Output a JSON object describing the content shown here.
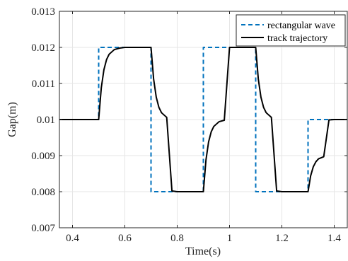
{
  "chart_data": {
    "type": "line",
    "xlabel": "Time(s)",
    "ylabel": "Gap(m)",
    "xlim": [
      0.35,
      1.45
    ],
    "ylim": [
      0.007,
      0.013
    ],
    "xticks": [
      0.4,
      0.6,
      0.8,
      1.0,
      1.2,
      1.4
    ],
    "xtick_labels": [
      "0.4",
      "0.6",
      "0.8",
      "1",
      "1.2",
      "1.4"
    ],
    "yticks": [
      0.007,
      0.008,
      0.009,
      0.01,
      0.011,
      0.012,
      0.013
    ],
    "ytick_labels": [
      "0.007",
      "0.008",
      "0.009",
      "0.01",
      "0.011",
      "0.012",
      "0.013"
    ],
    "grid": true,
    "legend_position": "top-right",
    "series": [
      {
        "name": "rectangular wave",
        "style": "dashed",
        "color": "#0072BD",
        "x": [
          0.35,
          0.5,
          0.5,
          0.7,
          0.7,
          0.9,
          0.9,
          1.1,
          1.1,
          1.3,
          1.3,
          1.45
        ],
        "y": [
          0.01,
          0.01,
          0.012,
          0.012,
          0.008,
          0.008,
          0.012,
          0.012,
          0.008,
          0.008,
          0.01,
          0.01
        ]
      },
      {
        "name": "track trajectory",
        "style": "solid",
        "color": "#000000",
        "x": [
          0.35,
          0.5,
          0.51,
          0.52,
          0.53,
          0.54,
          0.56,
          0.58,
          0.6,
          0.63,
          0.66,
          0.7,
          0.71,
          0.72,
          0.73,
          0.74,
          0.76,
          0.78,
          0.8,
          0.83,
          0.86,
          0.9,
          0.91,
          0.92,
          0.93,
          0.94,
          0.96,
          0.98,
          1.0,
          1.03,
          1.06,
          1.1,
          1.11,
          1.12,
          1.13,
          1.14,
          1.16,
          1.18,
          1.2,
          1.23,
          1.26,
          1.3,
          1.31,
          1.32,
          1.33,
          1.34,
          1.36,
          1.38,
          1.4,
          1.43,
          1.45
        ],
        "y": [
          0.01,
          0.01,
          0.01088,
          0.01138,
          0.01166,
          0.01181,
          0.01194,
          0.01198,
          0.012,
          0.012,
          0.012,
          0.012,
          0.01112,
          0.01062,
          0.01034,
          0.01019,
          0.01006,
          0.00802,
          0.008,
          0.008,
          0.008,
          0.008,
          0.00888,
          0.00938,
          0.00966,
          0.00981,
          0.00994,
          0.00998,
          0.012,
          0.012,
          0.012,
          0.012,
          0.01112,
          0.01062,
          0.01034,
          0.01019,
          0.01006,
          0.00802,
          0.008,
          0.008,
          0.008,
          0.008,
          0.00844,
          0.00869,
          0.00883,
          0.00891,
          0.00897,
          0.00999,
          0.01,
          0.01,
          0.01
        ]
      }
    ]
  }
}
